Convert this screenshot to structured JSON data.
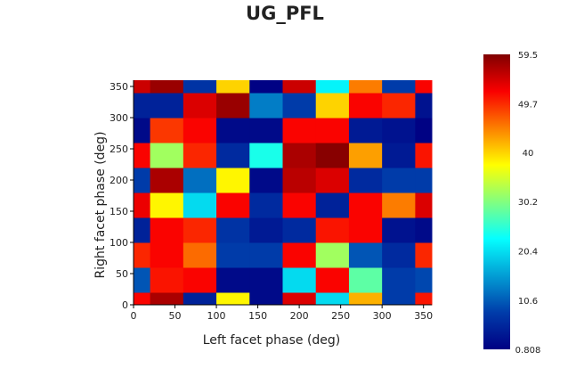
{
  "chart_data": {
    "type": "heatmap",
    "title": "UG_PFL",
    "xlabel": "Left facet phase (deg)",
    "ylabel": "Right facet phase (deg)",
    "xlim": [
      0,
      360
    ],
    "ylim": [
      0,
      360
    ],
    "x_ticks": [
      0,
      50,
      100,
      150,
      200,
      250,
      300,
      350
    ],
    "y_ticks": [
      0,
      50,
      100,
      150,
      200,
      250,
      300,
      350
    ],
    "x": [
      0,
      40,
      80,
      120,
      160,
      200,
      240,
      280,
      320,
      360
    ],
    "y": [
      0,
      40,
      80,
      120,
      160,
      200,
      240,
      280,
      320,
      360
    ],
    "z": [
      [
        52,
        57,
        5,
        38,
        2,
        54,
        20,
        42,
        8,
        51
      ],
      [
        10,
        51,
        52,
        2,
        2,
        20,
        52,
        28,
        8,
        9
      ],
      [
        50,
        52,
        46,
        8,
        8,
        52,
        32,
        10,
        6,
        50
      ],
      [
        5,
        52,
        50,
        7,
        4,
        6,
        51,
        52,
        3,
        2
      ],
      [
        53,
        38,
        20,
        52,
        6,
        52,
        5,
        52,
        45,
        54
      ],
      [
        8,
        57,
        12,
        38,
        2,
        56,
        54,
        6,
        8,
        8
      ],
      [
        52,
        32,
        50,
        6,
        24,
        57,
        59,
        43,
        4,
        51
      ],
      [
        2,
        49,
        52,
        2,
        2,
        52,
        52,
        4,
        3,
        1
      ],
      [
        5,
        5,
        54,
        58,
        13,
        8,
        40,
        52,
        50,
        3
      ],
      [
        55,
        58,
        7,
        40,
        1,
        55,
        22,
        45,
        8,
        52
      ]
    ],
    "colorscale": "Jet",
    "zmin": 0.808,
    "zmax": 59.5,
    "colorbar_ticks": [
      "0.808",
      "10.6",
      "20.4",
      "30.2",
      "40",
      "49.7",
      "59.5"
    ],
    "colorbar_values": [
      0.808,
      10.6,
      20.4,
      30.2,
      40,
      49.7,
      59.5
    ]
  }
}
